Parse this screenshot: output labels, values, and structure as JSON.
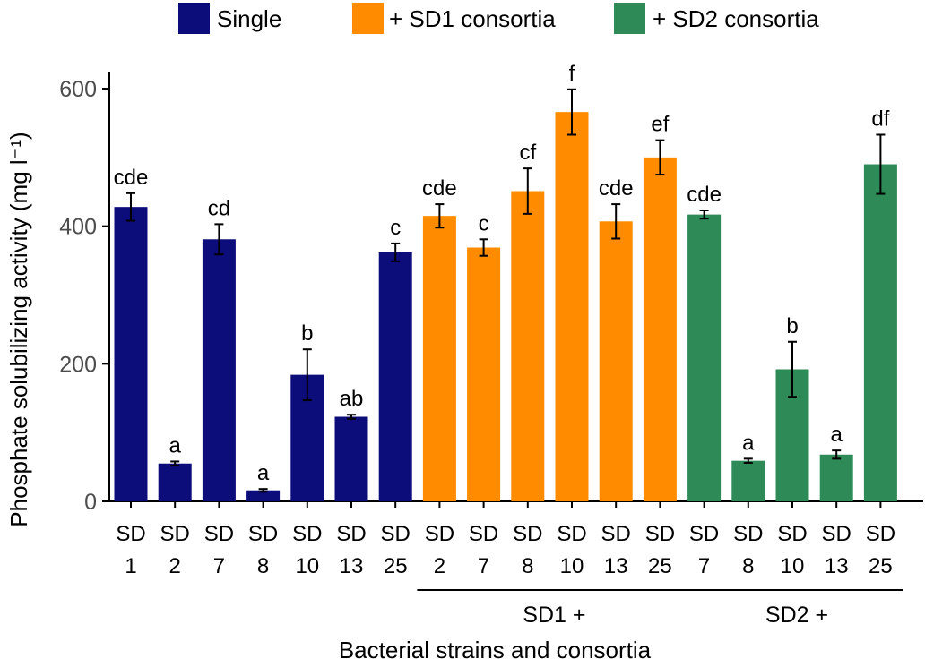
{
  "chart_data": {
    "type": "bar",
    "ylabel": "Phosphate solubilizing activity (mg l⁻¹)",
    "xlabel": "Bacterial strains and consortia",
    "ylim": [
      0,
      620
    ],
    "yticks": [
      0,
      200,
      400,
      600
    ],
    "grid": false,
    "legend_position": "top",
    "series": [
      {
        "name": "Single",
        "color": "#0c0c7a",
        "bars": [
          {
            "line1": "SD",
            "line2": "1",
            "value": 428,
            "error": 20,
            "sig": "cde"
          },
          {
            "line1": "SD",
            "line2": "2",
            "value": 55,
            "error": 3,
            "sig": "a"
          },
          {
            "line1": "SD",
            "line2": "7",
            "value": 381,
            "error": 22,
            "sig": "cd"
          },
          {
            "line1": "SD",
            "line2": "8",
            "value": 16,
            "error": 2,
            "sig": "a"
          },
          {
            "line1": "SD",
            "line2": "10",
            "value": 184,
            "error": 37,
            "sig": "b"
          },
          {
            "line1": "SD",
            "line2": "13",
            "value": 123,
            "error": 3,
            "sig": "ab"
          },
          {
            "line1": "SD",
            "line2": "25",
            "value": 362,
            "error": 13,
            "sig": "c"
          }
        ]
      },
      {
        "name": "+ SD1 consortia",
        "color": "#ff8c00",
        "group_label": "SD1 +",
        "bars": [
          {
            "line1": "SD",
            "line2": "2",
            "value": 415,
            "error": 17,
            "sig": "cde"
          },
          {
            "line1": "SD",
            "line2": "7",
            "value": 369,
            "error": 12,
            "sig": "c"
          },
          {
            "line1": "SD",
            "line2": "8",
            "value": 451,
            "error": 33,
            "sig": "cf"
          },
          {
            "line1": "SD",
            "line2": "10",
            "value": 566,
            "error": 33,
            "sig": "f"
          },
          {
            "line1": "SD",
            "line2": "13",
            "value": 407,
            "error": 25,
            "sig": "cde"
          },
          {
            "line1": "SD",
            "line2": "25",
            "value": 500,
            "error": 25,
            "sig": "ef"
          }
        ]
      },
      {
        "name": "+ SD2 consortia",
        "color": "#2e8b57",
        "group_label": "SD2 +",
        "bars": [
          {
            "line1": "SD",
            "line2": "7",
            "value": 417,
            "error": 6,
            "sig": "cde"
          },
          {
            "line1": "SD",
            "line2": "8",
            "value": 59,
            "error": 3,
            "sig": "a"
          },
          {
            "line1": "SD",
            "line2": "10",
            "value": 192,
            "error": 40,
            "sig": "b"
          },
          {
            "line1": "SD",
            "line2": "13",
            "value": 68,
            "error": 6,
            "sig": "a"
          },
          {
            "line1": "SD",
            "line2": "25",
            "value": 490,
            "error": 43,
            "sig": "df"
          }
        ]
      }
    ]
  }
}
